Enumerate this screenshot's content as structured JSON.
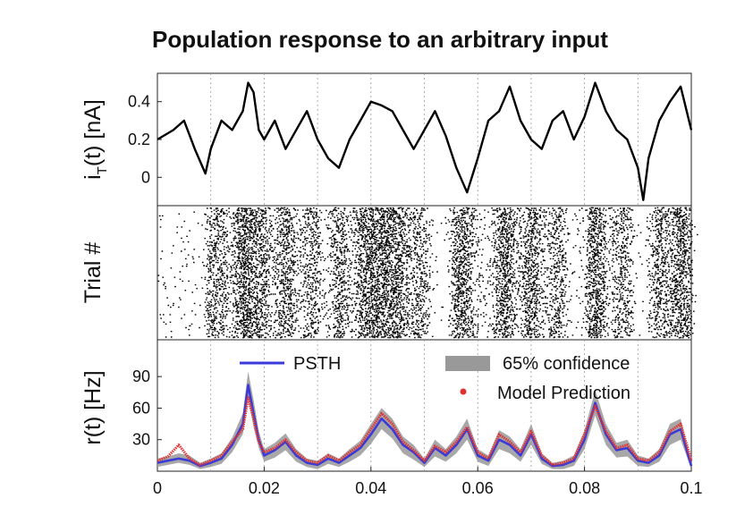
{
  "title": "Population response to an arbitrary input",
  "chart_data": [
    {
      "panel": "input-current",
      "type": "line",
      "ylabel": "i_T(t) [nA]",
      "ylabel_main": "i",
      "ylabel_sub": "T",
      "ylabel_rest": "(t) [nA]",
      "ylim": [
        -0.15,
        0.55
      ],
      "yticks": [
        0,
        0.2,
        0.4
      ],
      "ytick_labels": [
        "0",
        "0.2",
        "0.4"
      ],
      "grid": "vertical dotted",
      "series": [
        {
          "color": "#000000",
          "x": [
            0,
            0.003,
            0.005,
            0.007,
            0.009,
            0.01,
            0.012,
            0.014,
            0.016,
            0.017,
            0.018,
            0.019,
            0.02,
            0.022,
            0.024,
            0.026,
            0.028,
            0.03,
            0.032,
            0.034,
            0.036,
            0.038,
            0.04,
            0.042,
            0.044,
            0.046,
            0.048,
            0.05,
            0.052,
            0.054,
            0.056,
            0.058,
            0.06,
            0.062,
            0.064,
            0.066,
            0.068,
            0.07,
            0.072,
            0.074,
            0.076,
            0.078,
            0.08,
            0.082,
            0.084,
            0.086,
            0.088,
            0.09,
            0.091,
            0.092,
            0.094,
            0.096,
            0.098,
            0.1
          ],
          "y": [
            0.2,
            0.25,
            0.3,
            0.15,
            0.02,
            0.15,
            0.3,
            0.25,
            0.35,
            0.5,
            0.45,
            0.25,
            0.2,
            0.3,
            0.15,
            0.25,
            0.35,
            0.2,
            0.1,
            0.05,
            0.2,
            0.3,
            0.4,
            0.38,
            0.35,
            0.25,
            0.15,
            0.25,
            0.35,
            0.22,
            0.05,
            -0.08,
            0.1,
            0.3,
            0.35,
            0.48,
            0.3,
            0.2,
            0.15,
            0.3,
            0.35,
            0.2,
            0.32,
            0.5,
            0.35,
            0.25,
            0.2,
            0.05,
            -0.12,
            0.1,
            0.3,
            0.4,
            0.48,
            0.25
          ]
        }
      ]
    },
    {
      "panel": "raster",
      "type": "scatter",
      "ylabel": "Trial #",
      "description_free": true,
      "burst_centers": [
        0.011,
        0.016,
        0.019,
        0.024,
        0.029,
        0.034,
        0.039,
        0.042,
        0.045,
        0.049,
        0.057,
        0.065,
        0.07,
        0.075,
        0.082,
        0.087,
        0.094,
        0.098
      ],
      "burst_strength": [
        0.5,
        0.95,
        0.7,
        0.65,
        0.45,
        0.55,
        0.9,
        0.95,
        0.8,
        0.45,
        0.85,
        0.9,
        0.75,
        0.4,
        0.9,
        0.45,
        0.6,
        0.85
      ]
    },
    {
      "panel": "rate",
      "type": "line",
      "ylabel": "r(t) [Hz]",
      "ylim": [
        0,
        125
      ],
      "yticks": [
        30,
        60,
        90
      ],
      "ytick_labels": [
        "30",
        "60",
        "90"
      ],
      "xlim": [
        0,
        0.1
      ],
      "xticks": [
        0,
        0.02,
        0.04,
        0.06,
        0.08,
        0.1
      ],
      "xtick_labels": [
        "0",
        "0.02",
        "0.04",
        "0.06",
        "0.08",
        "0.1"
      ],
      "grid": "vertical dotted",
      "legend": [
        "PSTH",
        "65% confidence",
        "Model Prediction"
      ],
      "x": [
        0,
        0.002,
        0.004,
        0.006,
        0.008,
        0.01,
        0.012,
        0.014,
        0.016,
        0.017,
        0.018,
        0.019,
        0.02,
        0.022,
        0.024,
        0.026,
        0.028,
        0.03,
        0.032,
        0.034,
        0.036,
        0.038,
        0.04,
        0.042,
        0.044,
        0.046,
        0.048,
        0.05,
        0.052,
        0.054,
        0.056,
        0.058,
        0.06,
        0.062,
        0.064,
        0.066,
        0.068,
        0.07,
        0.072,
        0.074,
        0.076,
        0.078,
        0.08,
        0.082,
        0.084,
        0.086,
        0.088,
        0.09,
        0.092,
        0.094,
        0.096,
        0.098,
        0.1
      ],
      "series": [
        {
          "name": "PSTH",
          "color": "#3a3ad8",
          "values": [
            8,
            10,
            12,
            10,
            5,
            8,
            12,
            25,
            45,
            82,
            55,
            30,
            15,
            20,
            28,
            15,
            8,
            6,
            12,
            8,
            15,
            22,
            35,
            50,
            40,
            25,
            18,
            8,
            22,
            15,
            25,
            40,
            15,
            10,
            30,
            25,
            15,
            35,
            12,
            5,
            6,
            10,
            30,
            65,
            35,
            20,
            22,
            10,
            8,
            15,
            35,
            40,
            5
          ]
        },
        {
          "name": "Model Prediction",
          "color": "#e03030",
          "values": [
            10,
            14,
            25,
            12,
            6,
            10,
            15,
            28,
            40,
            70,
            50,
            28,
            18,
            22,
            30,
            18,
            10,
            8,
            15,
            10,
            18,
            25,
            40,
            55,
            45,
            28,
            20,
            10,
            24,
            18,
            28,
            42,
            18,
            12,
            35,
            28,
            18,
            38,
            15,
            6,
            8,
            12,
            35,
            62,
            38,
            22,
            25,
            12,
            10,
            18,
            38,
            45,
            10
          ]
        },
        {
          "name": "65% confidence",
          "color": "#999999",
          "lower": [
            4,
            6,
            8,
            6,
            2,
            4,
            7,
            18,
            35,
            70,
            42,
            22,
            9,
            13,
            20,
            9,
            4,
            2,
            7,
            4,
            9,
            15,
            26,
            40,
            31,
            17,
            11,
            4,
            14,
            9,
            17,
            30,
            9,
            5,
            21,
            17,
            9,
            25,
            7,
            2,
            2,
            5,
            21,
            53,
            25,
            13,
            14,
            5,
            4,
            9,
            25,
            30,
            2
          ],
          "upper": [
            12,
            14,
            17,
            15,
            8,
            12,
            17,
            32,
            55,
            95,
            68,
            38,
            21,
            27,
            36,
            21,
            12,
            10,
            17,
            12,
            21,
            29,
            45,
            60,
            50,
            33,
            25,
            12,
            30,
            21,
            33,
            50,
            21,
            15,
            39,
            33,
            21,
            45,
            17,
            8,
            10,
            15,
            39,
            77,
            45,
            27,
            30,
            15,
            12,
            21,
            45,
            50,
            8
          ]
        }
      ]
    }
  ]
}
